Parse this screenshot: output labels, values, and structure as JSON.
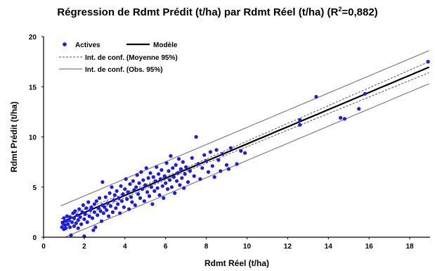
{
  "chart_data": {
    "type": "scatter",
    "title_prefix": "Régression de Rdmt Prédit  (t/ha) par Rdmt Réel (t/ha) (R",
    "title_sup": "2",
    "title_suffix": "=0,882)",
    "xlabel": "Rdmt Réel (t/ha)",
    "ylabel": "Rdmt Prédit  (t/ha)",
    "xlim": [
      0,
      19
    ],
    "ylim": [
      0,
      20
    ],
    "xticks": [
      "0",
      "2",
      "4",
      "6",
      "8",
      "10",
      "12",
      "14",
      "16",
      "18"
    ],
    "yticks": [
      "0",
      "5",
      "10",
      "15",
      "20"
    ],
    "grid": false,
    "legend_position": "top-left",
    "legend": [
      {
        "label": "Actives",
        "style": "marker"
      },
      {
        "label": "Modèle",
        "style": "thick-line"
      },
      {
        "label": "Int. de conf. (Moyenne 95%)",
        "style": "dashed-line"
      },
      {
        "label": "Int. de conf. (Obs. 95%)",
        "style": "thin-line"
      }
    ],
    "colors": {
      "points": "#1a1aee",
      "model": "#000000",
      "mean_ci": "#555555",
      "obs_ci": "#7f7f7f"
    },
    "model_line": {
      "intercept": 0.75,
      "slope": 0.855
    },
    "mean_ci_halfwidth": {
      "at_x_1": 0.35,
      "at_x_6": 0.15,
      "at_x_19": 0.55
    },
    "obs_ci_halfwidth": 1.65,
    "series": [
      {
        "name": "Actives",
        "points": [
          [
            0.9,
            1.0
          ],
          [
            0.95,
            1.4
          ],
          [
            1.0,
            0.8
          ],
          [
            1.0,
            1.9
          ],
          [
            1.05,
            1.2
          ],
          [
            1.1,
            1.6
          ],
          [
            1.1,
            0.9
          ],
          [
            1.15,
            2.1
          ],
          [
            1.2,
            1.3
          ],
          [
            1.25,
            1.7
          ],
          [
            1.3,
            1.0
          ],
          [
            1.3,
            2.0
          ],
          [
            1.35,
            0.2
          ],
          [
            1.4,
            1.5
          ],
          [
            1.45,
            2.4
          ],
          [
            1.5,
            1.1
          ],
          [
            1.5,
            1.9
          ],
          [
            1.55,
            2.6
          ],
          [
            1.6,
            1.4
          ],
          [
            1.65,
            2.2
          ],
          [
            1.7,
            0.9
          ],
          [
            1.7,
            1.7
          ],
          [
            1.75,
            2.8
          ],
          [
            1.8,
            2.0
          ],
          [
            1.85,
            1.3
          ],
          [
            1.9,
            2.5
          ],
          [
            1.95,
            3.2
          ],
          [
            2.0,
            1.8
          ],
          [
            2.0,
            0.1
          ],
          [
            2.05,
            2.3
          ],
          [
            2.1,
            2.9
          ],
          [
            2.15,
            1.5
          ],
          [
            2.2,
            3.5
          ],
          [
            2.25,
            2.1
          ],
          [
            2.3,
            2.7
          ],
          [
            2.35,
            3.0
          ],
          [
            2.4,
            1.9
          ],
          [
            2.45,
            0.7
          ],
          [
            2.5,
            2.5
          ],
          [
            2.5,
            3.3
          ],
          [
            2.55,
            1.0
          ],
          [
            2.6,
            3.6
          ],
          [
            2.65,
            2.2
          ],
          [
            2.7,
            2.9
          ],
          [
            2.75,
            3.9
          ],
          [
            2.8,
            2.6
          ],
          [
            2.85,
            1.6
          ],
          [
            2.9,
            3.2
          ],
          [
            2.9,
            5.5
          ],
          [
            2.95,
            2.4
          ],
          [
            3.0,
            3.0
          ],
          [
            3.05,
            4.0
          ],
          [
            3.1,
            2.7
          ],
          [
            3.15,
            3.4
          ],
          [
            3.2,
            2.1
          ],
          [
            3.25,
            4.4
          ],
          [
            3.3,
            3.1
          ],
          [
            3.35,
            5.0
          ],
          [
            3.4,
            2.5
          ],
          [
            3.45,
            3.7
          ],
          [
            3.5,
            4.2
          ],
          [
            3.55,
            2.9
          ],
          [
            3.6,
            4.6
          ],
          [
            3.65,
            3.3
          ],
          [
            3.7,
            3.9
          ],
          [
            3.75,
            2.4
          ],
          [
            3.8,
            5.1
          ],
          [
            3.85,
            3.6
          ],
          [
            3.9,
            4.3
          ],
          [
            3.95,
            3.0
          ],
          [
            4.0,
            4.8
          ],
          [
            4.05,
            5.8
          ],
          [
            4.1,
            3.8
          ],
          [
            4.15,
            4.5
          ],
          [
            4.2,
            2.8
          ],
          [
            4.25,
            5.3
          ],
          [
            4.3,
            4.0
          ],
          [
            4.35,
            3.5
          ],
          [
            4.4,
            5.6
          ],
          [
            4.45,
            4.7
          ],
          [
            4.5,
            3.2
          ],
          [
            4.55,
            5.0
          ],
          [
            4.6,
            6.2
          ],
          [
            4.65,
            4.3
          ],
          [
            4.7,
            5.4
          ],
          [
            4.75,
            3.9
          ],
          [
            4.8,
            6.5
          ],
          [
            4.85,
            4.8
          ],
          [
            4.9,
            5.7
          ],
          [
            4.95,
            3.6
          ],
          [
            5.0,
            5.2
          ],
          [
            5.05,
            6.9
          ],
          [
            5.1,
            4.5
          ],
          [
            5.15,
            5.9
          ],
          [
            5.2,
            4.1
          ],
          [
            5.25,
            6.4
          ],
          [
            5.3,
            5.0
          ],
          [
            5.35,
            3.3
          ],
          [
            5.4,
            6.0
          ],
          [
            5.45,
            4.6
          ],
          [
            5.5,
            5.6
          ],
          [
            5.55,
            7.0
          ],
          [
            5.6,
            4.9
          ],
          [
            5.65,
            6.3
          ],
          [
            5.7,
            4.2
          ],
          [
            5.75,
            5.8
          ],
          [
            5.8,
            6.7
          ],
          [
            5.85,
            5.1
          ],
          [
            5.9,
            3.9
          ],
          [
            5.95,
            6.1
          ],
          [
            6.0,
            5.4
          ],
          [
            6.05,
            7.4
          ],
          [
            6.1,
            4.8
          ],
          [
            6.15,
            6.6
          ],
          [
            6.2,
            5.7
          ],
          [
            6.25,
            8.1
          ],
          [
            6.3,
            5.0
          ],
          [
            6.35,
            6.9
          ],
          [
            6.4,
            6.0
          ],
          [
            6.45,
            4.4
          ],
          [
            6.5,
            7.2
          ],
          [
            6.55,
            5.6
          ],
          [
            6.6,
            6.4
          ],
          [
            6.65,
            7.8
          ],
          [
            6.7,
            5.2
          ],
          [
            6.75,
            6.8
          ],
          [
            6.8,
            5.9
          ],
          [
            6.85,
            7.5
          ],
          [
            6.9,
            4.9
          ],
          [
            6.95,
            6.3
          ],
          [
            7.0,
            7.0
          ],
          [
            7.1,
            5.5
          ],
          [
            7.2,
            6.6
          ],
          [
            7.3,
            7.9
          ],
          [
            7.4,
            6.1
          ],
          [
            7.5,
            10.0
          ],
          [
            7.6,
            7.3
          ],
          [
            7.7,
            5.8
          ],
          [
            7.8,
            6.9
          ],
          [
            7.9,
            8.2
          ],
          [
            8.0,
            7.6
          ],
          [
            8.1,
            6.5
          ],
          [
            8.2,
            8.5
          ],
          [
            8.3,
            7.1
          ],
          [
            8.4,
            6.0
          ],
          [
            8.5,
            8.7
          ],
          [
            8.6,
            7.7
          ],
          [
            8.7,
            6.6
          ],
          [
            8.8,
            8.3
          ],
          [
            9.0,
            7.2
          ],
          [
            9.1,
            6.8
          ],
          [
            9.2,
            8.9
          ],
          [
            9.5,
            7.3
          ],
          [
            9.7,
            8.6
          ],
          [
            9.9,
            8.4
          ],
          [
            12.6,
            11.7
          ],
          [
            12.6,
            11.2
          ],
          [
            13.4,
            14.0
          ],
          [
            14.6,
            11.9
          ],
          [
            14.8,
            11.8
          ],
          [
            15.5,
            12.8
          ],
          [
            15.8,
            14.3
          ],
          [
            18.9,
            17.5
          ]
        ]
      }
    ]
  }
}
